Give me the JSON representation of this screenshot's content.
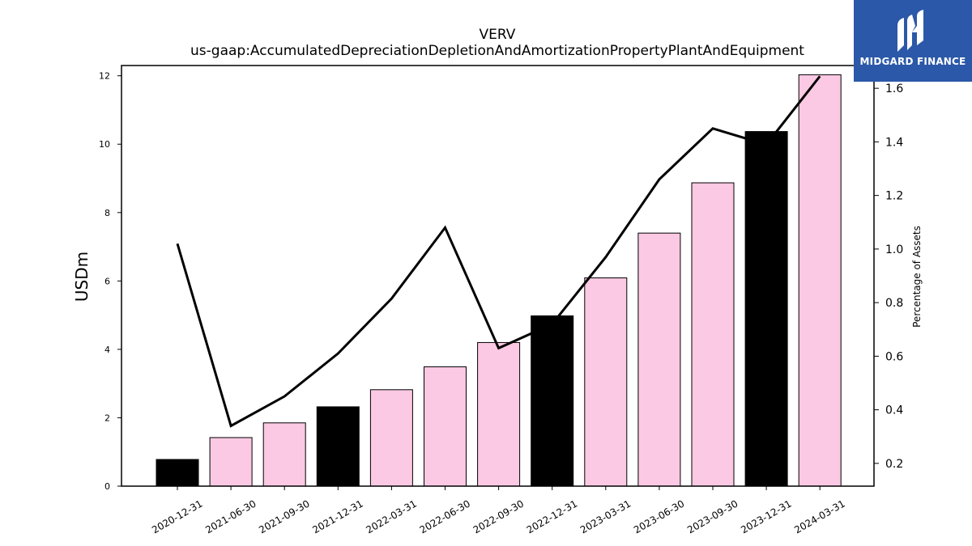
{
  "brand": {
    "name": "MIDGARD FINANCE",
    "bg_color": "#2b58a8"
  },
  "chart_data": {
    "type": "bar",
    "title": "VERV",
    "subtitle": "us-gaap:AccumulatedDepreciationDepletionAndAmortizationPropertyPlantAndEquipment",
    "ylabel": "USDm",
    "y2label": "Percentage of Assets",
    "ylim": [
      0,
      12.3
    ],
    "y2lim": [
      0.115,
      1.685
    ],
    "yticks": [
      0,
      2,
      4,
      6,
      8,
      10,
      12
    ],
    "y2ticks": [
      0.2,
      0.4,
      0.6,
      0.8,
      1.0,
      1.2,
      1.4,
      1.6
    ],
    "categories": [
      "2020-12-31",
      "2021-06-30",
      "2021-09-30",
      "2021-12-31",
      "2022-03-31",
      "2022-06-30",
      "2022-09-30",
      "2022-12-31",
      "2023-03-31",
      "2023-06-30",
      "2023-09-30",
      "2023-12-31",
      "2024-03-31"
    ],
    "series": [
      {
        "kind": "bar",
        "values": [
          0.78,
          1.42,
          1.85,
          2.32,
          2.82,
          3.49,
          4.2,
          4.98,
          6.09,
          7.4,
          8.87,
          10.37,
          12.03
        ],
        "colors": [
          "#000000",
          "#fbc9e3",
          "#fbc9e3",
          "#000000",
          "#fbc9e3",
          "#fbc9e3",
          "#fbc9e3",
          "#000000",
          "#fbc9e3",
          "#fbc9e3",
          "#fbc9e3",
          "#000000",
          "#fbc9e3"
        ]
      },
      {
        "kind": "line",
        "axis": "right",
        "color": "#000000",
        "values": [
          1.02,
          0.34,
          0.45,
          0.61,
          0.815,
          1.08,
          0.63,
          0.72,
          0.97,
          1.26,
          1.45,
          1.39,
          1.645
        ]
      }
    ],
    "grid": false,
    "legend": "none"
  }
}
